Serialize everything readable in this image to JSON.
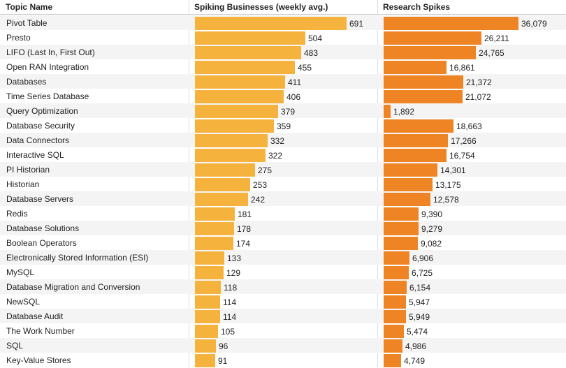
{
  "chart_data": {
    "type": "bar",
    "orientation": "horizontal",
    "columns": {
      "name": "Topic Name",
      "series1": "Spiking Businesses (weekly avg.)",
      "series2": "Research Spikes"
    },
    "categories": [
      "Pivot Table",
      "Presto",
      "LIFO (Last In, First Out)",
      "Open RAN Integration",
      "Databases",
      "Time Series Database",
      "Query Optimization",
      "Database Security",
      "Data Connectors",
      "Interactive SQL",
      "PI Historian",
      "Historian",
      "Database Servers",
      "Redis",
      "Database Solutions",
      "Boolean Operators",
      "Electronically Stored Information (ESI)",
      "MySQL",
      "Database Migration and Conversion",
      "NewSQL",
      "Database Audit",
      "The Work Number",
      "SQL",
      "Key-Value Stores"
    ],
    "series": [
      {
        "name": "Spiking Businesses (weekly avg.)",
        "color": "#f5b33e",
        "values": [
          691,
          504,
          483,
          455,
          411,
          406,
          379,
          359,
          332,
          322,
          275,
          253,
          242,
          181,
          178,
          174,
          133,
          129,
          118,
          114,
          114,
          105,
          96,
          91
        ],
        "labels": [
          "691",
          "504",
          "483",
          "455",
          "411",
          "406",
          "379",
          "359",
          "332",
          "322",
          "275",
          "253",
          "242",
          "181",
          "178",
          "174",
          "133",
          "129",
          "118",
          "114",
          "114",
          "105",
          "96",
          "91"
        ]
      },
      {
        "name": "Research Spikes",
        "color": "#ef8425",
        "values": [
          36079,
          26211,
          24765,
          16861,
          21372,
          21072,
          1892,
          18663,
          17266,
          16754,
          14301,
          13175,
          12578,
          9390,
          9279,
          9082,
          6906,
          6725,
          6154,
          5947,
          5949,
          5474,
          4986,
          4749
        ],
        "labels": [
          "36,079",
          "26,211",
          "24,765",
          "16,861",
          "21,372",
          "21,072",
          "1,892",
          "18,663",
          "17,266",
          "16,754",
          "14,301",
          "13,175",
          "12,578",
          "9,390",
          "9,279",
          "9,082",
          "6,906",
          "6,725",
          "6,154",
          "5,947",
          "5,949",
          "5,474",
          "4,986",
          "4,749"
        ]
      }
    ]
  }
}
